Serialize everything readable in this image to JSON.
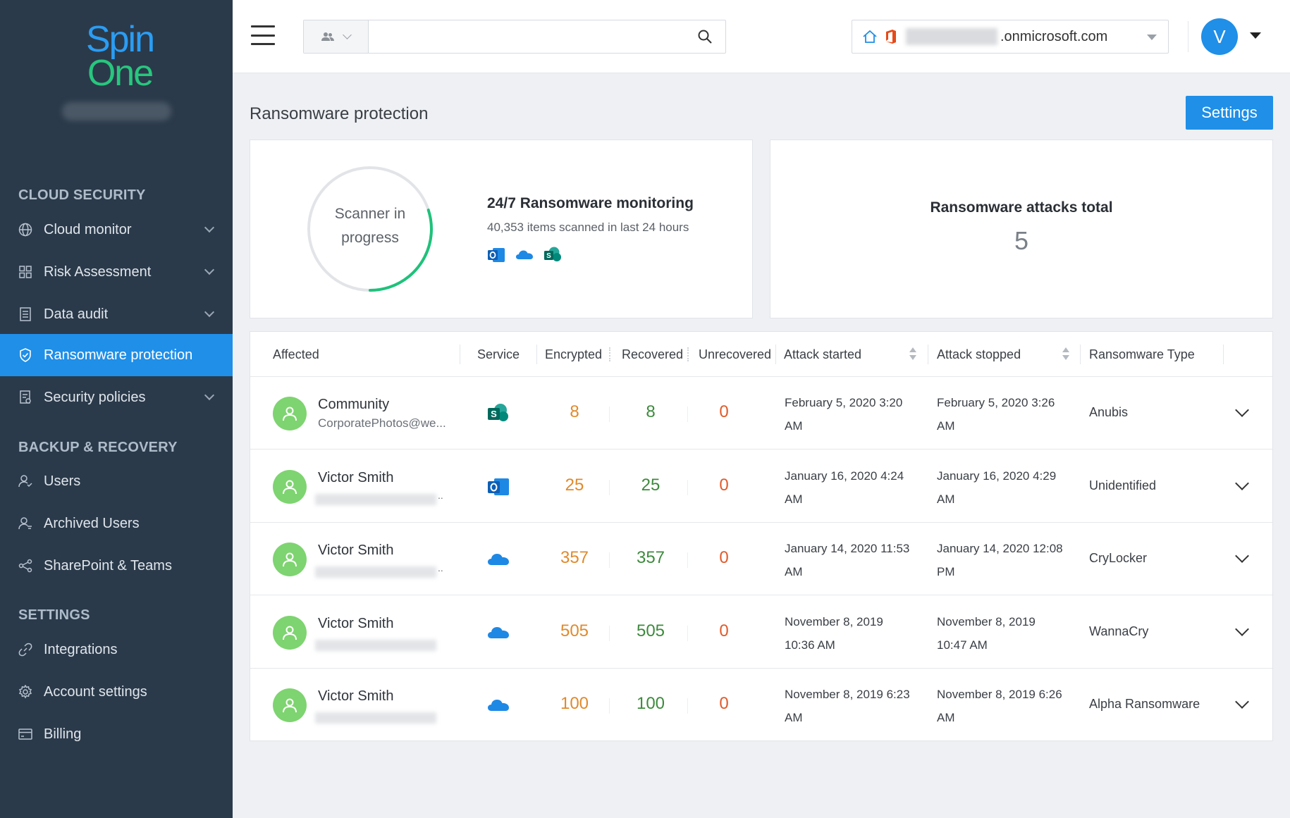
{
  "brand": {
    "line1": "Spin",
    "line2": "One"
  },
  "sidebar": {
    "sections": [
      {
        "title": "CLOUD SECURITY"
      },
      {
        "title": "BACKUP & RECOVERY"
      },
      {
        "title": "SETTINGS"
      }
    ],
    "items": [
      {
        "label": "Cloud monitor",
        "icon": "globe-icon",
        "chevron": true
      },
      {
        "label": "Risk Assessment",
        "icon": "grid-icon",
        "chevron": true
      },
      {
        "label": "Data audit",
        "icon": "document-icon",
        "chevron": true
      },
      {
        "label": "Ransomware protection",
        "icon": "shield-icon",
        "active": true
      },
      {
        "label": "Security policies",
        "icon": "policy-icon",
        "chevron": true
      },
      {
        "label": "Users",
        "icon": "users-icon"
      },
      {
        "label": "Archived Users",
        "icon": "archived-users-icon"
      },
      {
        "label": "SharePoint & Teams",
        "icon": "share-icon"
      },
      {
        "label": "Integrations",
        "icon": "link-icon"
      },
      {
        "label": "Account settings",
        "icon": "gear-icon"
      },
      {
        "label": "Billing",
        "icon": "card-icon"
      }
    ]
  },
  "topbar": {
    "search_placeholder": "",
    "domain_suffix": ".onmicrosoft.com",
    "avatar_initial": "V"
  },
  "page": {
    "title": "Ransomware protection",
    "settings_label": "Settings"
  },
  "scanner": {
    "status_line1": "Scanner in",
    "status_line2": "progress",
    "progress_fraction": 0.3,
    "title": "24/7 Ransomware monitoring",
    "subtitle": "40,353 items scanned in last 24 hours",
    "services": [
      "outlook-icon",
      "onedrive-icon",
      "sharepoint-icon"
    ]
  },
  "attacks_total": {
    "label": "Ransomware attacks total",
    "value": "5"
  },
  "colors": {
    "accent": "#1f8fe8",
    "progress": "#1ec27a",
    "encrypted": "#e08a2c",
    "recovered": "#3d8a3d",
    "unrecovered": "#e05a2a"
  },
  "table": {
    "headers": {
      "affected": "Affected",
      "service": "Service",
      "encrypted": "Encrypted",
      "recovered": "Recovered",
      "unrecovered": "Unrecovered",
      "attack_started": "Attack started",
      "attack_stopped": "Attack stopped",
      "ransomware_type": "Ransomware Type"
    },
    "rows": [
      {
        "name": "Community",
        "sub": "CorporatePhotos@we...",
        "service": "sharepoint-icon",
        "encrypted": "8",
        "recovered": "8",
        "unrecovered": "0",
        "started_l1": "February 5, 2020 3:20",
        "started_l2": "AM",
        "stopped_l1": "February 5, 2020 3:26",
        "stopped_l2": "AM",
        "type": "Anubis"
      },
      {
        "name": "Victor Smith",
        "sub": "..",
        "service": "outlook-icon",
        "encrypted": "25",
        "recovered": "25",
        "unrecovered": "0",
        "started_l1": "January 16, 2020 4:24",
        "started_l2": "AM",
        "stopped_l1": "January 16, 2020 4:29",
        "stopped_l2": "AM",
        "type": "Unidentified"
      },
      {
        "name": "Victor Smith",
        "sub": "..",
        "service": "onedrive-icon",
        "encrypted": "357",
        "recovered": "357",
        "unrecovered": "0",
        "started_l1": "January 14, 2020 11:53",
        "started_l2": "AM",
        "stopped_l1": "January 14, 2020 12:08",
        "stopped_l2": "PM",
        "type": "CryLocker"
      },
      {
        "name": "Victor Smith",
        "sub": "",
        "service": "onedrive-icon",
        "encrypted": "505",
        "recovered": "505",
        "unrecovered": "0",
        "started_l1": "November 8, 2019",
        "started_l2": "10:36 AM",
        "stopped_l1": "November 8, 2019",
        "stopped_l2": "10:47 AM",
        "type": "WannaCry"
      },
      {
        "name": "Victor Smith",
        "sub": "",
        "service": "onedrive-icon",
        "encrypted": "100",
        "recovered": "100",
        "unrecovered": "0",
        "started_l1": "November 8, 2019 6:23",
        "started_l2": "AM",
        "stopped_l1": "November 8, 2019 6:26",
        "stopped_l2": "AM",
        "type": "Alpha Ransomware"
      }
    ]
  }
}
